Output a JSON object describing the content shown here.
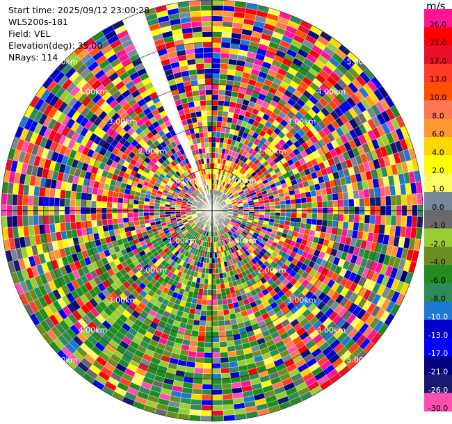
{
  "header": {
    "start_time": "Start time: 2025/09/12 23:00:28",
    "instrument": "WLS200s-181",
    "field": "Field: VEL",
    "elevation": "Elevation(deg): 35.00",
    "nrays": "NRays: 114"
  },
  "chart_data": {
    "type": "heatmap",
    "projection": "polar-ppi",
    "field": "VEL",
    "units": "m/s",
    "elevation_deg": 35.0,
    "n_rays": 114,
    "max_range_km": 5.0,
    "range_ring_step_km": 1.0,
    "range_ring_labels": [
      "1.00km",
      "2.00km",
      "3.00km",
      "4.00km",
      "5.00km"
    ],
    "missing_sector_azimuth_deg": [
      -28,
      -20
    ],
    "colorbar": {
      "ticks": [
        "26.0",
        "21.0",
        "17.0",
        "13.0",
        "10.0",
        "8.0",
        "6.0",
        "4.0",
        "2.0",
        "1.0",
        "0.0",
        "-1.0",
        "-2.0",
        "-4.0",
        "-6.0",
        "-8.0",
        "-10.0",
        "-13.0",
        "-17.0",
        "-21.0",
        "-26.0",
        "-30.0"
      ],
      "colors": [
        "#ff1493",
        "#ff0000",
        "#e8102a",
        "#ff3c28",
        "#ff5000",
        "#ff7850",
        "#ff9632",
        "#ffd700",
        "#ffff00",
        "#ffff64",
        "#778899",
        "#696969",
        "#9acd32",
        "#6b8e23",
        "#228b22",
        "#2e8b57",
        "#1e78d2",
        "#0000cd",
        "#0000ff",
        "#000080",
        "#191970",
        "#ff4fb0"
      ]
    }
  }
}
